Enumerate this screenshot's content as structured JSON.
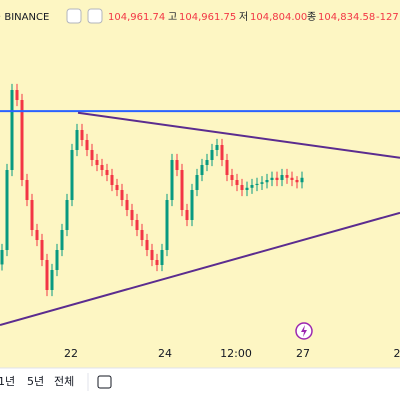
{
  "header": {
    "source": "· BINANCE",
    "open": "104,961.74",
    "high_label": "고",
    "high": "104,961.75",
    "low_label": "저",
    "low": "104,804.00",
    "close_label": "종",
    "close": "104,834.58",
    "change": "-127"
  },
  "toolbar": [
    "1년",
    "5년",
    "전체"
  ],
  "chart_data": {
    "type": "candlestick",
    "x_labels": [
      "22",
      "24",
      "12:00",
      "27",
      "2"
    ],
    "ylim": [
      101950,
      107800
    ],
    "up_color": "#089981",
    "down_color": "#f23645",
    "open": [
      103400,
      103660,
      105100,
      106540,
      106360,
      104920,
      104560,
      104020,
      103840,
      103480,
      102940,
      103300,
      103660,
      104020,
      104560,
      105460,
      105820,
      105640,
      105460,
      105280,
      105190,
      105100,
      105010,
      104830,
      104740,
      104560,
      104380,
      104200,
      104020,
      103840,
      103660,
      103480,
      103390,
      103660,
      104560,
      105280,
      105100,
      104380,
      104200,
      104740,
      105010,
      105190,
      105280,
      105460,
      105550,
      105280,
      105010,
      104920,
      104830,
      104740,
      104780,
      104830,
      104850,
      104880,
      104920,
      104960,
      104920,
      105010,
      104960,
      104920,
      104880
    ],
    "high": [
      103770,
      105210,
      106650,
      106650,
      106470,
      105030,
      104670,
      104130,
      103950,
      103590,
      103410,
      103770,
      104130,
      104670,
      105570,
      105930,
      105930,
      105750,
      105570,
      105390,
      105300,
      105210,
      105120,
      104940,
      104850,
      104670,
      104490,
      104310,
      104130,
      103950,
      103770,
      103590,
      103770,
      104670,
      105390,
      105390,
      105210,
      104490,
      104850,
      105120,
      105300,
      105390,
      105570,
      105660,
      105660,
      105390,
      105120,
      105030,
      104940,
      104890,
      104940,
      104960,
      104990,
      105030,
      105070,
      105070,
      105120,
      105120,
      105070,
      104990,
      105070
    ],
    "low": [
      103290,
      103550,
      104990,
      106250,
      104810,
      104450,
      103910,
      103730,
      103370,
      102830,
      102830,
      103190,
      103550,
      103910,
      104450,
      105350,
      105530,
      105350,
      105170,
      105080,
      104990,
      104900,
      104720,
      104630,
      104450,
      104270,
      104090,
      103910,
      103730,
      103550,
      103370,
      103280,
      103280,
      103550,
      104450,
      104990,
      104270,
      104090,
      104090,
      104630,
      104900,
      105080,
      105170,
      105350,
      105170,
      104900,
      104810,
      104720,
      104630,
      104630,
      104670,
      104720,
      104740,
      104770,
      104810,
      104810,
      104810,
      104850,
      104810,
      104770,
      104770
    ],
    "close": [
      103660,
      105100,
      106540,
      106360,
      104920,
      104560,
      104020,
      103840,
      103480,
      102940,
      103300,
      103660,
      104020,
      104560,
      105460,
      105820,
      105640,
      105460,
      105280,
      105190,
      105100,
      105010,
      104830,
      104740,
      104560,
      104380,
      104200,
      104020,
      103840,
      103660,
      103480,
      103390,
      103660,
      104560,
      105280,
      105100,
      104380,
      104200,
      104740,
      105010,
      105190,
      105280,
      105460,
      105550,
      105280,
      105010,
      104920,
      104830,
      104740,
      104780,
      104830,
      104850,
      104880,
      104920,
      104960,
      104920,
      105010,
      104960,
      104920,
      104880,
      104960
    ],
    "levels": [
      {
        "value": 106160,
        "color": "#2962ff"
      }
    ],
    "trendlines": [
      {
        "color": "#5b2c8f",
        "points": [
          [
            15.2,
            106130
          ],
          [
            79.6,
            105320
          ]
        ]
      },
      {
        "color": "#5b2c8f",
        "points": [
          [
            -0.4,
            102310
          ],
          [
            79.6,
            104330
          ]
        ]
      }
    ]
  }
}
